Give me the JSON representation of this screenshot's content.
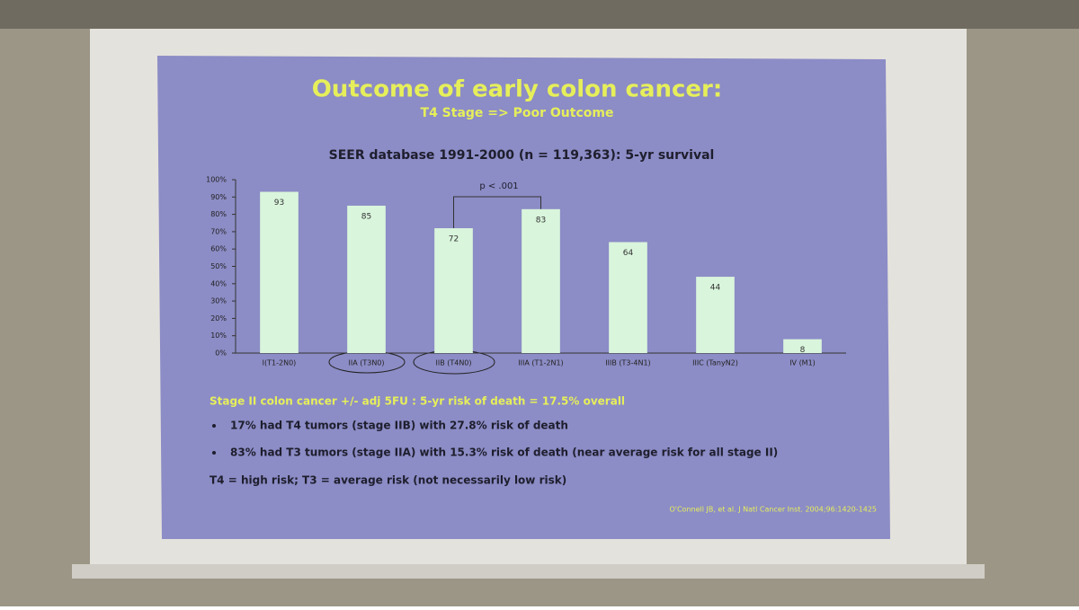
{
  "slide": {
    "title": "Outcome of early colon cancer:",
    "subtitle": "T4 Stage => Poor Outcome",
    "notes": [
      "Stage II colon cancer +/- adj 5FU : 5-yr risk of death = 17.5% overall",
      "17% had T4 tumors (stage IIB) with 27.8% risk of death",
      "83% had T3 tumors (stage IIA) with 15.3% risk of death (near average risk for all stage II)",
      "T4 = high risk; T3 = average risk (not necessarily low risk)"
    ],
    "citation": "O'Connell JB, et al. J Natl Cancer Inst. 2004;96:1420-1425"
  },
  "chart_data": {
    "type": "bar",
    "title": "SEER database 1991-2000 (n = 119,363):  5-yr survival",
    "annotation": "p < .001",
    "categories": [
      "I(T1-2N0)",
      "IIA (T3N0)",
      "IIB (T4N0)",
      "IIIA (T1-2N1)",
      "IIIB (T3-4N1)",
      "IIIC (TanyN2)",
      "IV (M1)"
    ],
    "values": [
      93,
      85,
      72,
      83,
      64,
      44,
      8
    ],
    "color": "#d9f5dc",
    "ylim": [
      0,
      100
    ],
    "yticks": [
      {
        "value": 0,
        "label": "0%"
      },
      {
        "value": 10,
        "label": "10%"
      },
      {
        "value": 20,
        "label": "20%"
      },
      {
        "value": 30,
        "label": "30%"
      },
      {
        "value": 40,
        "label": "40%"
      },
      {
        "value": 50,
        "label": "50%"
      },
      {
        "value": 60,
        "label": "60%"
      },
      {
        "value": 70,
        "label": "70%"
      },
      {
        "value": 80,
        "label": "80%"
      },
      {
        "value": 90,
        "label": "90%"
      },
      {
        "value": 100,
        "label": "100%"
      }
    ]
  }
}
